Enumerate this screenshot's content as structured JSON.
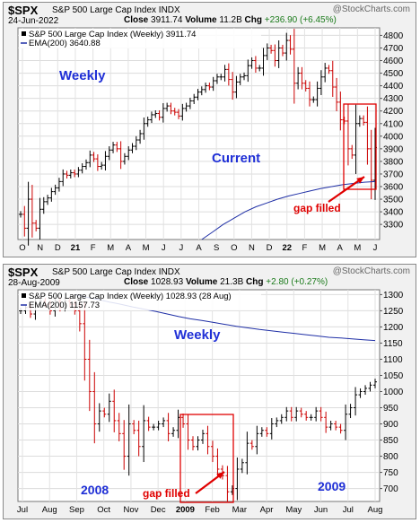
{
  "charts": [
    {
      "symbol": "$SPX",
      "name": "S&P 500 Large Cap Index  INDX",
      "brand": "@StockCharts.com",
      "date": "24-Jun-2022",
      "quote": {
        "close_label": "Close",
        "close": "3911.74",
        "volume_label": "Volume",
        "volume": "11.2B",
        "chg_label": "Chg",
        "chg": "+236.90 (+6.45%)"
      },
      "legend_line1": "S&P 500 Large Cap Index (Weekly) 3911.74",
      "legend_line2": "EMA(200) 3640.88",
      "label_period": "Weekly",
      "label_state": "Current",
      "label_gap": "gap filled",
      "x_ticks": [
        "O",
        "N",
        "D",
        "21",
        "F",
        "M",
        "A",
        "M",
        "J",
        "J",
        "A",
        "S",
        "O",
        "N",
        "D",
        "22",
        "F",
        "M",
        "A",
        "M",
        "J"
      ],
      "y_ticks": [
        3300,
        3400,
        3500,
        3600,
        3700,
        3800,
        3900,
        4000,
        4100,
        4200,
        4300,
        4400,
        4500,
        4600,
        4700,
        4800
      ]
    },
    {
      "symbol": "$SPX",
      "name": "S&P 500 Large Cap Index  INDX",
      "brand": "@StockCharts.com",
      "date": "28-Aug-2009",
      "quote": {
        "close_label": "Close",
        "close": "1028.93",
        "volume_label": "Volume",
        "volume": "21.3B",
        "chg_label": "Chg",
        "chg": "+2.80 (+0.27%)"
      },
      "legend_line1": "S&P 500 Large Cap Index (Weekly) 1028.93 (28 Aug)",
      "legend_line2": "EMA(200) 1157.73",
      "label_period": "Weekly",
      "label_year1": "2008",
      "label_year2": "2009",
      "label_gap": "gap filled",
      "x_ticks": [
        "Jul",
        "Aug",
        "Sep",
        "Oct",
        "Nov",
        "Dec",
        "2009",
        "Feb",
        "Mar",
        "Apr",
        "May",
        "Jun",
        "Jul",
        "Aug"
      ],
      "y_ticks": [
        700,
        750,
        800,
        850,
        900,
        950,
        1000,
        1050,
        1100,
        1150,
        1200,
        1250,
        1300
      ]
    }
  ],
  "chart_data": [
    {
      "type": "ohlc",
      "title": "S&P 500 Large Cap Index (Weekly)",
      "ylim": [
        3180,
        4860
      ],
      "colors": {
        "up": "#000000",
        "down": "#cc0000",
        "ema": "#1f2fa6",
        "annotation": "#e00000"
      },
      "series": [
        {
          "name": "S&P 500 Large Cap Index (Weekly)",
          "values": [
            3380,
            3270,
            3500,
            3310,
            3270,
            3420,
            3480,
            3510,
            3560,
            3590,
            3640,
            3700,
            3690,
            3710,
            3700,
            3730,
            3760,
            3790,
            3850,
            3820,
            3760,
            3770,
            3840,
            3890,
            3930,
            3900,
            3800,
            3840,
            3890,
            3920,
            3970,
            4020,
            4100,
            4130,
            4170,
            4180,
            4150,
            4220,
            4240,
            4200,
            4190,
            4160,
            4220,
            4240,
            4280,
            4310,
            4350,
            4370,
            4400,
            4390,
            4440,
            4470,
            4470,
            4530,
            4450,
            4350,
            4430,
            4470,
            4480,
            4560,
            4600,
            4540,
            4540,
            4640,
            4700,
            4680,
            4600,
            4700,
            4660,
            4760,
            4690,
            4420,
            4500,
            4420,
            4380,
            4290,
            4290,
            4380,
            4470,
            4540,
            4520,
            4390,
            4270,
            4130,
            4120,
            3900,
            3850,
            4100,
            4140,
            4110,
            3900,
            3650,
            3910
          ]
        },
        {
          "name": "EMA(200)",
          "x_start_week": 47,
          "values": [
            3180,
            3240,
            3300,
            3350,
            3400,
            3440,
            3470,
            3500,
            3525,
            3545,
            3565,
            3585,
            3600,
            3615,
            3625,
            3635,
            3640
          ]
        }
      ]
    },
    {
      "type": "ohlc",
      "title": "S&P 500 Large Cap Index (Weekly)",
      "ylim": [
        660,
        1315
      ],
      "colors": {
        "up": "#000000",
        "down": "#cc0000",
        "ema": "#1f2fa6",
        "annotation": "#e00000"
      },
      "series": [
        {
          "name": "S&P 500 Large Cap Index (Weekly)",
          "values": [
            1250,
            1260,
            1240,
            1270,
            1280,
            1270,
            1250,
            1280,
            1260,
            1280,
            1270,
            1250,
            1210,
            1100,
            1000,
            900,
            940,
            930,
            970,
            910,
            870,
            800,
            900,
            880,
            830,
            910,
            890,
            890,
            900,
            910,
            870,
            880,
            920,
            900,
            850,
            830,
            850,
            870,
            830,
            800,
            760,
            740,
            690,
            700,
            760,
            780,
            840,
            830,
            870,
            880,
            870,
            900,
            910,
            920,
            940,
            920,
            940,
            930,
            920,
            920,
            940,
            920,
            890,
            900,
            890,
            880,
            930,
            950,
            990,
            1000,
            1010,
            1020,
            1030
          ]
        },
        {
          "name": "EMA(200)",
          "x_start_week": 11,
          "values": [
            1300,
            1292,
            1285,
            1277,
            1270,
            1262,
            1255,
            1248,
            1240,
            1232,
            1225,
            1220,
            1214,
            1208,
            1202,
            1197,
            1192,
            1188,
            1184,
            1180,
            1176,
            1172,
            1168,
            1166,
            1163,
            1160,
            1158
          ]
        }
      ]
    }
  ]
}
